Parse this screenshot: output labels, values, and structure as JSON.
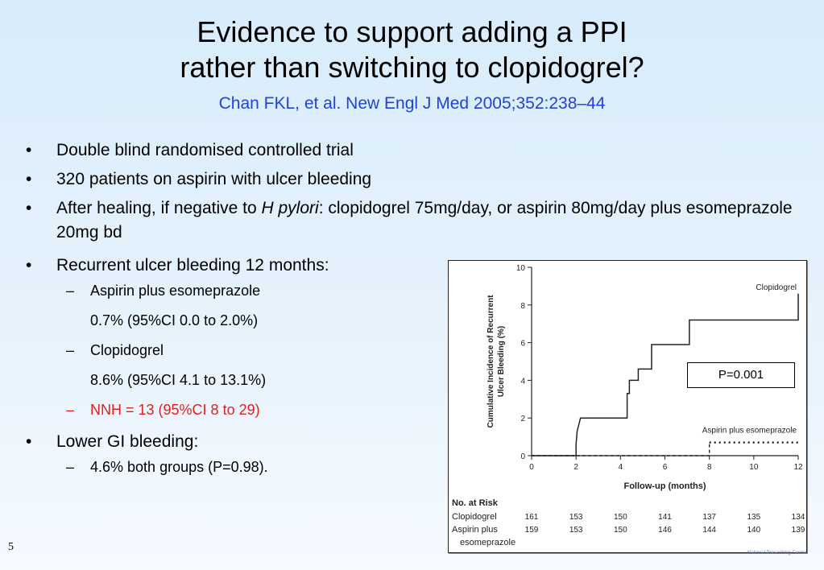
{
  "slide": {
    "title_line1": "Evidence to support adding a PPI",
    "title_line2": "rather than switching to clopidogrel?",
    "citation": "Chan FKL, et al. New Engl J Med 2005;352:238–44",
    "slide_number": "5",
    "logo_text": "National Prescribing Centre"
  },
  "bullets": {
    "b1": "Double blind randomised controlled trial",
    "b2": "320 patients on aspirin with ulcer bleeding",
    "b3_pre": "After healing, if negative to ",
    "b3_italic": "H pylori",
    "b3_post": ": clopidogrel 75mg/day, or aspirin 80mg/day plus esomeprazole 20mg bd",
    "b4": "Recurrent ulcer bleeding 12 months:",
    "b4_sub1": "Aspirin plus esomeprazole",
    "b4_sub1_value": "0.7% (95%CI 0.0 to 2.0%)",
    "b4_sub2": "Clopidogrel",
    "b4_sub2_value": "8.6% (95%CI 4.1 to 13.1%)",
    "b4_sub3": "NNH = 13 (95%CI 8 to 29)",
    "b5": "Lower GI bleeding:",
    "b5_sub1": "4.6% both groups (P=0.98)."
  },
  "p_value_box": "P=0.001",
  "chart_data": {
    "type": "line",
    "title": "",
    "xlabel": "Follow-up (months)",
    "ylabel": "Cumulative Incidence of Recurrent Ulcer Bleeding (%)",
    "xlim": [
      0,
      12
    ],
    "ylim": [
      0,
      10
    ],
    "x_ticks": [
      0,
      2,
      4,
      6,
      8,
      10,
      12
    ],
    "y_ticks": [
      0,
      2,
      4,
      6,
      8,
      10
    ],
    "y_tick_labels": [
      "0",
      "2",
      "4",
      "6",
      "8",
      "10"
    ],
    "series": [
      {
        "name": "Clopidogrel",
        "color": "#222222",
        "step": true,
        "points": [
          [
            0,
            0
          ],
          [
            2,
            0
          ],
          [
            2,
            0.6
          ],
          [
            2.05,
            1.3
          ],
          [
            2.2,
            2.0
          ],
          [
            4.3,
            2.0
          ],
          [
            4.3,
            3.3
          ],
          [
            4.4,
            3.3
          ],
          [
            4.4,
            4.0
          ],
          [
            4.8,
            4.0
          ],
          [
            4.8,
            4.6
          ],
          [
            5.4,
            4.6
          ],
          [
            5.4,
            5.9
          ],
          [
            7.1,
            5.9
          ],
          [
            7.1,
            7.2
          ],
          [
            12,
            7.2
          ],
          [
            12,
            8.6
          ]
        ]
      },
      {
        "name": "Aspirin plus esomeprazole",
        "color": "#222222",
        "step": true,
        "dashed_after": 8,
        "points": [
          [
            0,
            0
          ],
          [
            8,
            0
          ],
          [
            8,
            0.7
          ],
          [
            12,
            0.7
          ]
        ]
      }
    ],
    "risk_table": {
      "header": "No. at Risk",
      "rows": [
        {
          "label": "Clopidogrel",
          "values": [
            "161",
            "153",
            "150",
            "141",
            "137",
            "135",
            "134"
          ]
        },
        {
          "label": "Aspirin plus",
          "label2": "esomeprazole",
          "values": [
            "159",
            "153",
            "150",
            "146",
            "144",
            "140",
            "139"
          ]
        }
      ]
    }
  }
}
